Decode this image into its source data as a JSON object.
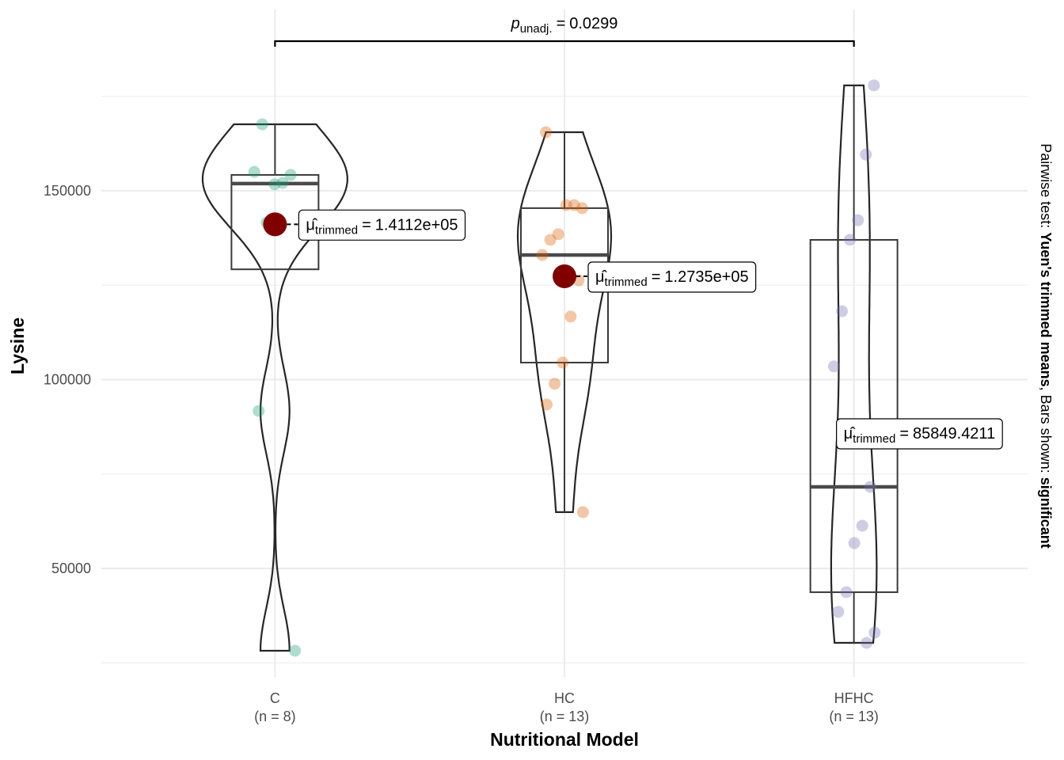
{
  "chart_data": {
    "type": "violin-box",
    "x_label": "Nutritional Model",
    "y_label": "Lysine",
    "subtitle_parts": [
      {
        "text": "Pairwise test: ",
        "bold": false
      },
      {
        "text": "Yuen's trimmed means",
        "bold": true
      },
      {
        "text": ", Bars shown: ",
        "bold": false
      },
      {
        "text": "significant",
        "bold": true
      }
    ],
    "categories": [
      "C",
      "HC",
      "HFHC"
    ],
    "n_labels": [
      "(n = 8)",
      "(n = 13)",
      "(n = 13)"
    ],
    "groups": [
      {
        "color": "#1b9e77",
        "values": [
          167600,
          155000,
          154200,
          152100,
          151700,
          141600,
          91700,
          28200
        ],
        "box": {
          "whisker_low": 129200,
          "q1": 129200,
          "median": 151900,
          "q3": 154200,
          "whisker_high": 167600
        },
        "mean": 141120,
        "mean_label": "1.4112e+05"
      },
      {
        "color": "#d95f02",
        "values": [
          165500,
          145400,
          146200,
          146200,
          138500,
          137000,
          133000,
          126300,
          116700,
          104500,
          98900,
          93400,
          64900
        ],
        "box": {
          "whisker_low": 64900,
          "q1": 104500,
          "median": 133000,
          "q3": 145400,
          "whisker_high": 165500
        },
        "mean": 127350,
        "mean_label": "1.2735e+05"
      },
      {
        "color": "#7570b3",
        "values": [
          177900,
          159600,
          142200,
          137000,
          118100,
          103500,
          71600,
          61300,
          56700,
          43700,
          38500,
          33000,
          30300
        ],
        "box": {
          "whisker_low": 30300,
          "q1": 43700,
          "median": 71600,
          "q3": 137000,
          "whisker_high": 177900
        },
        "mean": 85849.4211,
        "mean_label": "85849.4211"
      }
    ],
    "mean_color": "#800000",
    "mean_symbol": "μ̂",
    "mean_sub": "trimmed",
    "equals": "=",
    "p_symbol": "p",
    "p_sub": "unadj.",
    "p_value": 0.0299,
    "comparison": [
      "C",
      "HFHC"
    ],
    "ylim": [
      21280,
      198000
    ],
    "yticks": [
      50000,
      100000,
      150000
    ],
    "minor_yticks": [
      25000,
      75000,
      125000,
      175000
    ],
    "grid": true
  }
}
